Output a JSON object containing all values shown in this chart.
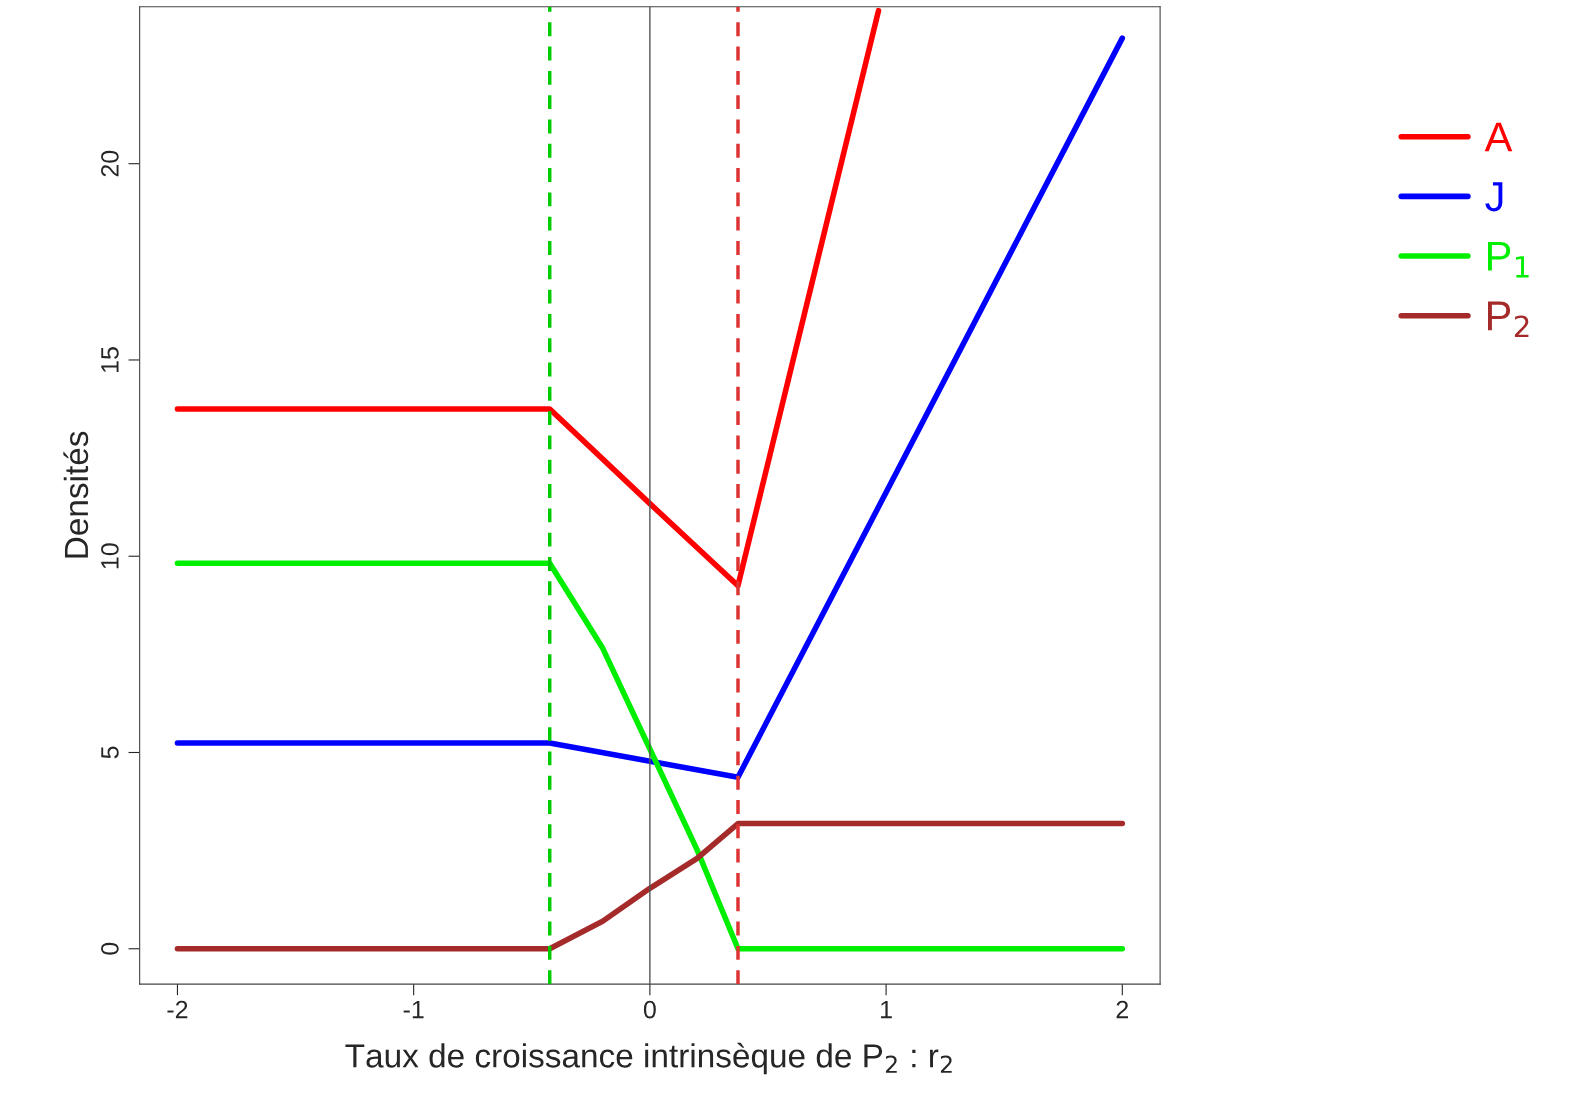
{
  "chart_data": {
    "type": "line",
    "xlabel": "Taux de croissance intrinsèque de P$_{2}$ : r$_{2}$",
    "ylabel": "Densités",
    "xlim": [
      -2.16,
      2.16
    ],
    "ylim": [
      -0.9,
      24.0
    ],
    "xticks": [
      -2,
      -1,
      0,
      1,
      2
    ],
    "yticks": [
      0,
      5,
      10,
      15,
      20
    ],
    "grid": false,
    "legend": "top right",
    "line_style": "solid",
    "marker": "none",
    "series": [
      {
        "name": "A",
        "color": "#ff0000",
        "x": [
          -2,
          -0.424,
          0,
          0.373,
          0.968
        ],
        "values": [
          13.75,
          13.75,
          11.34,
          9.25,
          23.9
        ]
      },
      {
        "name": "J",
        "color": "#0000ff",
        "x": [
          -2,
          -0.424,
          0.373,
          2
        ],
        "values": [
          5.24,
          5.24,
          4.37,
          23.2
        ]
      },
      {
        "name": "P$_{1}$",
        "color": "#00ee00",
        "x": [
          -2,
          -0.424,
          -0.2,
          0,
          0.2,
          0.373,
          2
        ],
        "values": [
          9.82,
          9.82,
          7.66,
          5.09,
          2.52,
          0,
          0
        ]
      },
      {
        "name": "P$_{2}$",
        "color": "#a52a2a",
        "x": [
          -2,
          -0.424,
          -0.2,
          0,
          0.2,
          0.373,
          2
        ],
        "values": [
          0,
          0,
          0.7,
          1.54,
          2.3,
          3.19,
          3.19
        ]
      }
    ],
    "ref_lines": [
      {
        "axis": "x",
        "value": 0,
        "color": "#555555",
        "line_style": "solid"
      },
      {
        "axis": "x",
        "value": -0.424,
        "color": "#00cc00",
        "line_style": "dashed"
      },
      {
        "axis": "x",
        "value": 0.373,
        "color": "#dd3333",
        "line_style": "dashed"
      }
    ]
  }
}
